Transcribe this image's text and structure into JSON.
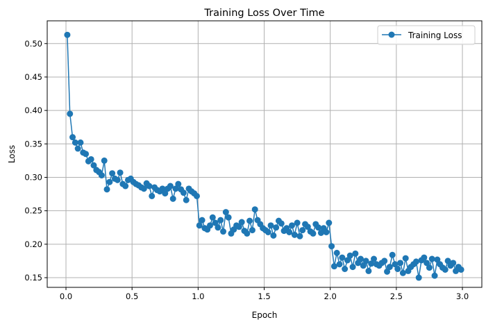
{
  "chart_data": {
    "type": "line",
    "title": "Training Loss Over Time",
    "xlabel": "Epoch",
    "ylabel": "Loss",
    "xlim": [
      -0.142,
      3.147
    ],
    "ylim": [
      0.1355,
      0.534
    ],
    "xticks": [
      0.0,
      0.5,
      1.0,
      1.5,
      2.0,
      2.5,
      3.0
    ],
    "xtick_labels": [
      "0.0",
      "0.5",
      "1.0",
      "1.5",
      "2.0",
      "2.5",
      "3.0"
    ],
    "yticks": [
      0.15,
      0.2,
      0.25,
      0.3,
      0.35,
      0.4,
      0.45,
      0.5
    ],
    "ytick_labels": [
      "0.15",
      "0.20",
      "0.25",
      "0.30",
      "0.35",
      "0.40",
      "0.45",
      "0.50"
    ],
    "grid": true,
    "legend_position": "top-right",
    "series": [
      {
        "name": "Training Loss",
        "color": "#1f77b4",
        "marker": "circle",
        "x": [
          0.01,
          0.03,
          0.05,
          0.07,
          0.09,
          0.11,
          0.13,
          0.15,
          0.17,
          0.19,
          0.21,
          0.23,
          0.25,
          0.27,
          0.29,
          0.31,
          0.33,
          0.35,
          0.37,
          0.39,
          0.41,
          0.43,
          0.45,
          0.47,
          0.49,
          0.51,
          0.53,
          0.55,
          0.57,
          0.59,
          0.61,
          0.63,
          0.65,
          0.67,
          0.69,
          0.71,
          0.73,
          0.75,
          0.77,
          0.79,
          0.81,
          0.83,
          0.85,
          0.87,
          0.89,
          0.91,
          0.93,
          0.95,
          0.97,
          0.99,
          1.01,
          1.03,
          1.05,
          1.07,
          1.09,
          1.11,
          1.13,
          1.15,
          1.17,
          1.19,
          1.21,
          1.23,
          1.25,
          1.27,
          1.29,
          1.31,
          1.33,
          1.35,
          1.37,
          1.39,
          1.41,
          1.43,
          1.45,
          1.47,
          1.49,
          1.51,
          1.53,
          1.55,
          1.57,
          1.59,
          1.61,
          1.63,
          1.65,
          1.67,
          1.69,
          1.71,
          1.73,
          1.75,
          1.77,
          1.79,
          1.81,
          1.83,
          1.85,
          1.87,
          1.89,
          1.91,
          1.93,
          1.95,
          1.97,
          1.99,
          2.01,
          2.03,
          2.05,
          2.07,
          2.09,
          2.11,
          2.13,
          2.15,
          2.17,
          2.19,
          2.21,
          2.23,
          2.25,
          2.27,
          2.29,
          2.31,
          2.33,
          2.35,
          2.37,
          2.39,
          2.41,
          2.43,
          2.45,
          2.47,
          2.49,
          2.51,
          2.53,
          2.55,
          2.57,
          2.59,
          2.61,
          2.63,
          2.65,
          2.67,
          2.69,
          2.71,
          2.73,
          2.75,
          2.77,
          2.79,
          2.81,
          2.83,
          2.85,
          2.87,
          2.89,
          2.91,
          2.93,
          2.95,
          2.97,
          2.99
        ],
        "y": [
          0.513,
          0.395,
          0.36,
          0.352,
          0.343,
          0.352,
          0.337,
          0.335,
          0.324,
          0.327,
          0.318,
          0.311,
          0.308,
          0.303,
          0.325,
          0.282,
          0.293,
          0.306,
          0.298,
          0.296,
          0.307,
          0.29,
          0.287,
          0.296,
          0.298,
          0.293,
          0.29,
          0.288,
          0.285,
          0.283,
          0.291,
          0.287,
          0.272,
          0.285,
          0.281,
          0.279,
          0.283,
          0.276,
          0.283,
          0.287,
          0.268,
          0.283,
          0.29,
          0.282,
          0.277,
          0.266,
          0.283,
          0.279,
          0.276,
          0.272,
          0.228,
          0.236,
          0.224,
          0.222,
          0.228,
          0.24,
          0.232,
          0.225,
          0.236,
          0.219,
          0.248,
          0.24,
          0.216,
          0.222,
          0.228,
          0.226,
          0.233,
          0.22,
          0.216,
          0.235,
          0.221,
          0.252,
          0.236,
          0.23,
          0.224,
          0.221,
          0.218,
          0.228,
          0.213,
          0.225,
          0.235,
          0.231,
          0.22,
          0.224,
          0.218,
          0.228,
          0.214,
          0.232,
          0.212,
          0.221,
          0.23,
          0.226,
          0.219,
          0.216,
          0.23,
          0.225,
          0.217,
          0.224,
          0.218,
          0.232,
          0.197,
          0.167,
          0.187,
          0.17,
          0.18,
          0.163,
          0.176,
          0.183,
          0.166,
          0.186,
          0.172,
          0.178,
          0.168,
          0.175,
          0.16,
          0.171,
          0.178,
          0.17,
          0.168,
          0.172,
          0.175,
          0.159,
          0.166,
          0.184,
          0.17,
          0.163,
          0.172,
          0.157,
          0.179,
          0.16,
          0.166,
          0.17,
          0.174,
          0.15,
          0.176,
          0.18,
          0.172,
          0.165,
          0.178,
          0.153,
          0.177,
          0.17,
          0.165,
          0.162,
          0.175,
          0.168,
          0.172,
          0.16,
          0.166,
          0.162
        ]
      }
    ]
  }
}
